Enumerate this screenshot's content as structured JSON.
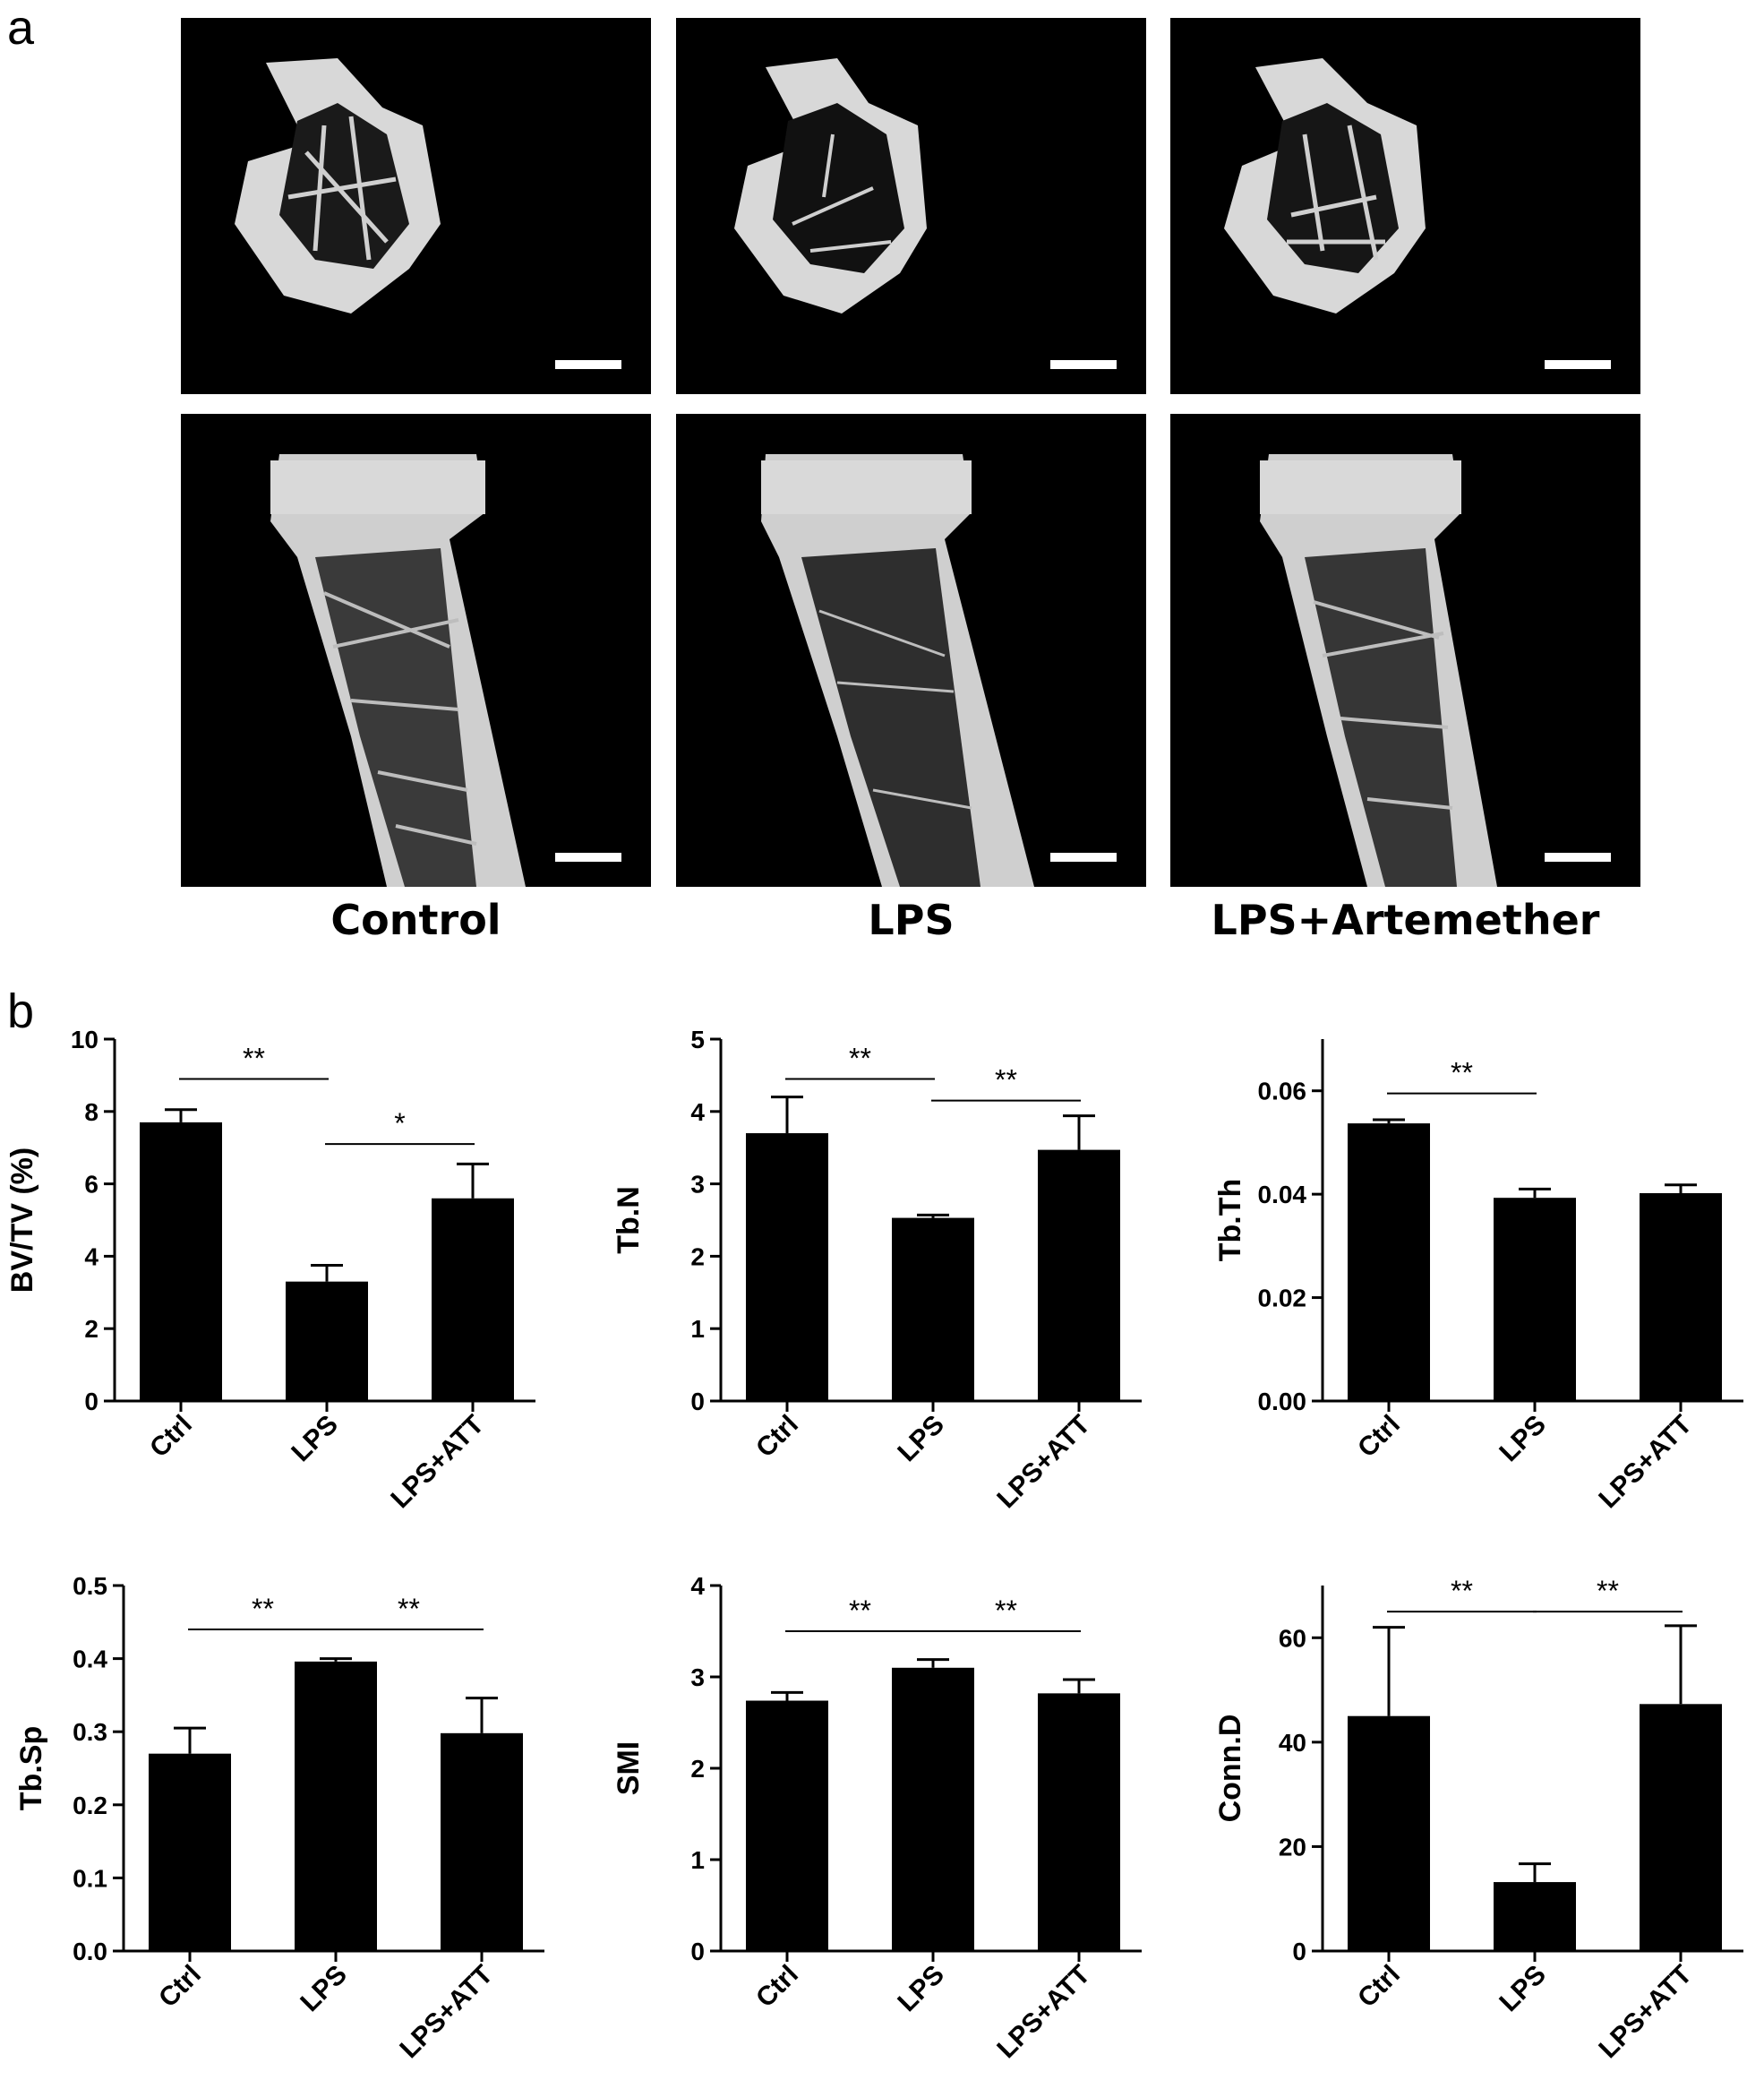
{
  "panel_labels": {
    "a": "a",
    "b": "b"
  },
  "panel_a": {
    "groups": [
      "Control",
      "LPS",
      "LPS+Artemether"
    ]
  },
  "chart_data": [
    {
      "type": "bar",
      "ylabel": "BV/TV (%)",
      "categories": [
        "Ctrl",
        "LPS",
        "LPS+ATT"
      ],
      "values": [
        7.7,
        3.3,
        5.6
      ],
      "errors": [
        0.35,
        0.45,
        0.95
      ],
      "ylim": [
        0,
        10
      ],
      "yticks": [
        "0",
        "2",
        "4",
        "6",
        "8",
        "10"
      ],
      "significance": [
        {
          "from": 0,
          "to": 1,
          "label": "**",
          "y": 8.9
        },
        {
          "from": 1,
          "to": 2,
          "label": "*",
          "y": 7.1
        }
      ]
    },
    {
      "type": "bar",
      "ylabel": "Tb.N",
      "categories": [
        "Ctrl",
        "LPS",
        "LPS+ATT"
      ],
      "values": [
        3.7,
        2.53,
        3.47
      ],
      "errors": [
        0.5,
        0.04,
        0.47
      ],
      "ylim": [
        0,
        5
      ],
      "yticks": [
        "0",
        "1",
        "2",
        "3",
        "4",
        "5"
      ],
      "significance": [
        {
          "from": 0,
          "to": 1,
          "label": "**",
          "y": 4.45
        },
        {
          "from": 1,
          "to": 2,
          "label": "**",
          "y": 4.15
        }
      ]
    },
    {
      "type": "bar",
      "ylabel": "Tb.Th",
      "categories": [
        "Ctrl",
        "LPS",
        "LPS+ATT"
      ],
      "values": [
        0.0537,
        0.0393,
        0.0402
      ],
      "errors": [
        0.0007,
        0.0017,
        0.0016
      ],
      "ylim": [
        0,
        0.07
      ],
      "yticks": [
        "0.00",
        "0.02",
        "0.04",
        "0.06"
      ],
      "significance": [
        {
          "from": 0,
          "to": 1,
          "label": "**",
          "y": 0.0595
        }
      ]
    },
    {
      "type": "bar",
      "ylabel": "Tb.Sp",
      "categories": [
        "Ctrl",
        "LPS",
        "LPS+ATT"
      ],
      "values": [
        0.27,
        0.396,
        0.298
      ],
      "errors": [
        0.035,
        0.004,
        0.048
      ],
      "ylim": [
        0,
        0.5
      ],
      "yticks": [
        "0.0",
        "0.1",
        "0.2",
        "0.3",
        "0.4",
        "0.5"
      ],
      "significance": [
        {
          "from": 0,
          "to": 1,
          "label": "**",
          "y": 0.44
        },
        {
          "from": 1,
          "to": 2,
          "label": "**",
          "y": 0.44
        }
      ]
    },
    {
      "type": "bar",
      "ylabel": "SMI",
      "categories": [
        "Ctrl",
        "LPS",
        "LPS+ATT"
      ],
      "values": [
        2.74,
        3.1,
        2.82
      ],
      "errors": [
        0.09,
        0.09,
        0.15
      ],
      "ylim": [
        0,
        4
      ],
      "yticks": [
        "0",
        "1",
        "2",
        "3",
        "4"
      ],
      "significance": [
        {
          "from": 0,
          "to": 1,
          "label": "**",
          "y": 3.5
        },
        {
          "from": 1,
          "to": 2,
          "label": "**",
          "y": 3.5
        }
      ]
    },
    {
      "type": "bar",
      "ylabel": "Conn.D",
      "categories": [
        "Ctrl",
        "LPS",
        "LPS+ATT"
      ],
      "values": [
        45,
        13.2,
        47.3
      ],
      "errors": [
        17,
        3.5,
        15
      ],
      "ylim": [
        0,
        70
      ],
      "yticks": [
        "0",
        "20",
        "40",
        "60"
      ],
      "significance": [
        {
          "from": 0,
          "to": 1,
          "label": "**",
          "y": 65
        },
        {
          "from": 1,
          "to": 2,
          "label": "**",
          "y": 65
        }
      ]
    }
  ]
}
